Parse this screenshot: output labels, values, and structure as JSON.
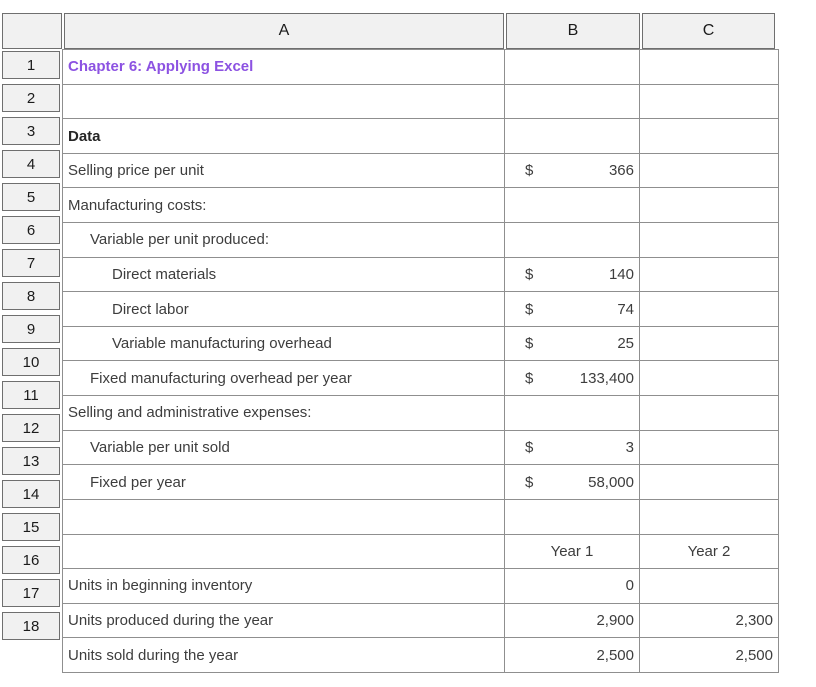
{
  "app": {
    "kind": "excel-worksheet"
  },
  "colors": {
    "title_text": "#8c52e2",
    "header_bg": "#f1f1f1",
    "header_border": "#6f6f6f",
    "grid_border": "#8f8f8f",
    "body_text": "#3d3d3d",
    "header_text": "#1b1b1b"
  },
  "spreadsheet": {
    "column_headers": [
      "A",
      "B",
      "C"
    ],
    "row_numbers": [
      "1",
      "2",
      "3",
      "4",
      "5",
      "6",
      "7",
      "8",
      "9",
      "10",
      "11",
      "12",
      "13",
      "14",
      "15",
      "16",
      "17",
      "18"
    ],
    "rows": [
      {
        "n": "1",
        "a": "Chapter 6: Applying Excel",
        "a_style": "title"
      },
      {
        "n": "2",
        "a": ""
      },
      {
        "n": "3",
        "a": "Data",
        "a_style": "bold"
      },
      {
        "n": "4",
        "a": "Selling price per unit",
        "indent": 0,
        "b": {
          "prefix": "$",
          "value": "366"
        }
      },
      {
        "n": "5",
        "a": "Manufacturing costs:",
        "indent": 0
      },
      {
        "n": "6",
        "a": "Variable per unit produced:",
        "indent": 1
      },
      {
        "n": "7",
        "a": "Direct materials",
        "indent": 2,
        "b": {
          "prefix": "$",
          "value": "140"
        }
      },
      {
        "n": "8",
        "a": "Direct labor",
        "indent": 2,
        "b": {
          "prefix": "$",
          "value": "74"
        }
      },
      {
        "n": "9",
        "a": "Variable manufacturing overhead",
        "indent": 2,
        "b": {
          "prefix": "$",
          "value": "25"
        }
      },
      {
        "n": "10",
        "a": "Fixed manufacturing overhead per year",
        "indent": 1,
        "b": {
          "prefix": "$",
          "value": "133,400"
        }
      },
      {
        "n": "11",
        "a": "Selling and administrative expenses:",
        "indent": 0
      },
      {
        "n": "12",
        "a": "Variable per unit sold",
        "indent": 1,
        "b": {
          "prefix": "$",
          "value": "3"
        }
      },
      {
        "n": "13",
        "a": "Fixed per year",
        "indent": 1,
        "b": {
          "prefix": "$",
          "value": "58,000"
        }
      },
      {
        "n": "14",
        "a": ""
      },
      {
        "n": "15",
        "a": "",
        "b": {
          "label": "Year 1"
        },
        "c": {
          "label": "Year 2"
        }
      },
      {
        "n": "16",
        "a": "Units in beginning inventory",
        "indent": 0,
        "b": {
          "value": "0"
        }
      },
      {
        "n": "17",
        "a": "Units produced during the year",
        "indent": 0,
        "b": {
          "value": "2,900"
        },
        "c": {
          "value": "2,300"
        }
      },
      {
        "n": "18",
        "a": "Units sold during the year",
        "indent": 0,
        "b": {
          "value": "2,500"
        },
        "c": {
          "value": "2,500"
        }
      }
    ]
  }
}
